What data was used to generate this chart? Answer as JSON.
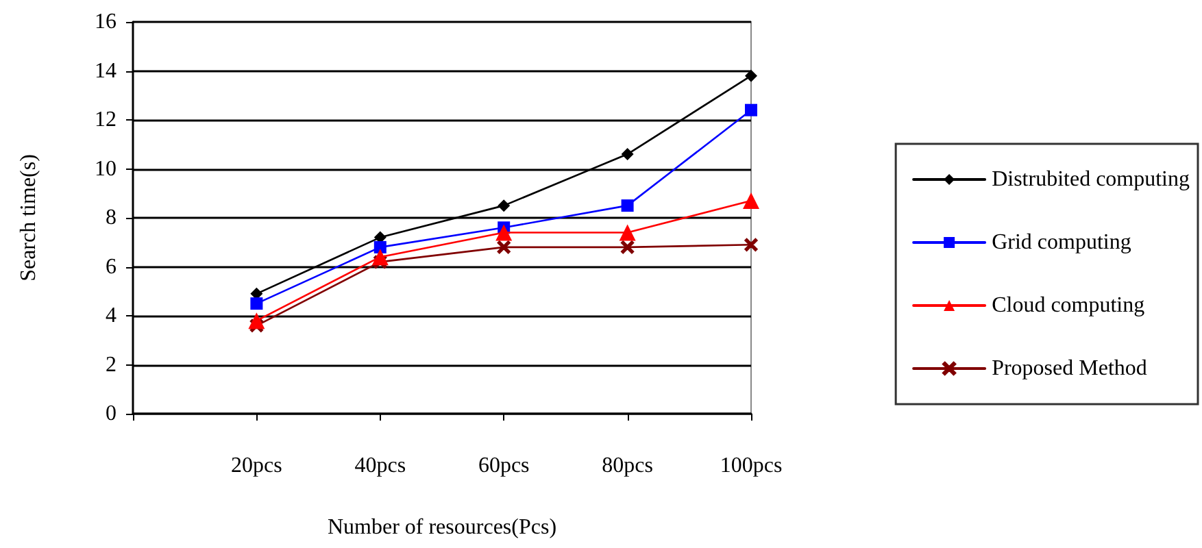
{
  "chart_data": {
    "type": "line",
    "xlabel": "Number of resources(Pcs)",
    "ylabel": "Search time(s)",
    "categories": [
      null,
      "20pcs",
      "40pcs",
      "60pcs",
      "80pcs",
      "100pcs"
    ],
    "series": [
      {
        "name": "Distrubited computing",
        "color": "#000000",
        "marker": "diamond",
        "values": [
          null,
          4.9,
          7.2,
          8.5,
          10.6,
          13.8
        ]
      },
      {
        "name": "Grid computing",
        "color": "#0000ff",
        "marker": "square",
        "values": [
          null,
          4.5,
          6.8,
          7.6,
          8.5,
          12.4
        ]
      },
      {
        "name": "Cloud computing",
        "color": "#ff0000",
        "marker": "triangle",
        "values": [
          null,
          3.8,
          6.4,
          7.4,
          7.4,
          8.7
        ]
      },
      {
        "name": "Proposed Method",
        "color": "#800000",
        "marker": "cross",
        "values": [
          null,
          3.6,
          6.2,
          6.8,
          6.8,
          6.9
        ]
      }
    ],
    "ylim": [
      0,
      16
    ],
    "yticks": [
      0,
      2,
      4,
      6,
      8,
      10,
      12,
      14,
      16
    ],
    "grid": "y",
    "legend": "right",
    "line_style": "solid"
  }
}
